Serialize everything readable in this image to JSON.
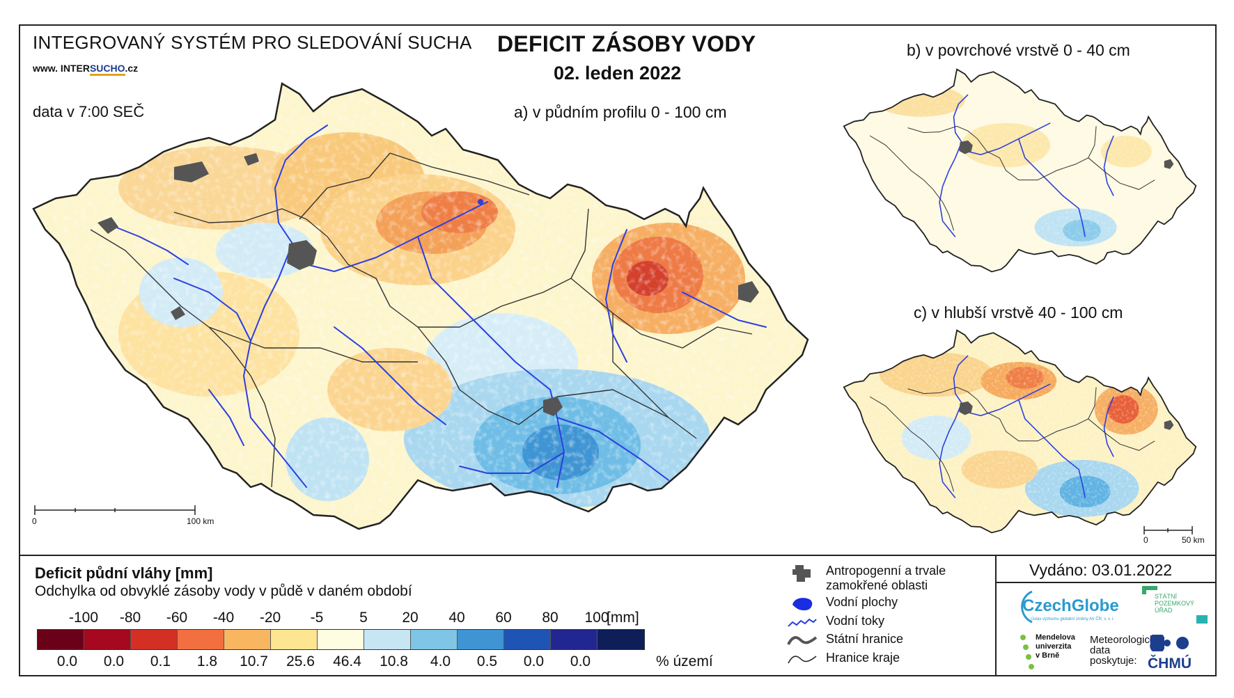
{
  "header": {
    "system_title": "INTEGROVANÝ SYSTÉM PRO SLEDOVÁNÍ SUCHA",
    "website_prefix": "www. INTER",
    "website_brand": "SUCHO",
    "website_suffix": ".cz",
    "data_time": "data v 7:00 SEČ",
    "main_title": "DEFICIT ZÁSOBY VODY",
    "date": "02. leden 2022"
  },
  "maps": {
    "a_caption": "a) v půdním profilu 0 - 100 cm",
    "b_caption": "b) v povrchové vrstvě 0 - 40 cm",
    "c_caption": "c) v hlubší vrstvě 40 - 100 cm",
    "scale_main_start": "0",
    "scale_main_end": "100 km",
    "scale_small_start": "0",
    "scale_small_end": "50 km"
  },
  "legend": {
    "title": "Deficit půdní vláhy  [mm]",
    "subtitle": "Odchylka od obvyklé zásoby vody v půdě v daném období",
    "ticks": [
      "-100",
      "-80",
      "-60",
      "-40",
      "-20",
      "-5",
      "5",
      "20",
      "40",
      "60",
      "80",
      "100"
    ],
    "tick_unit": "[mm]",
    "colors": [
      "#6b0019",
      "#a5081f",
      "#d42f25",
      "#f2703f",
      "#f9b661",
      "#fde592",
      "#fefde2",
      "#c7e6f4",
      "#7fc5e6",
      "#3f95d4",
      "#1e55b4",
      "#222690",
      "#0d1e58"
    ],
    "percentages": [
      "0.0",
      "0.0",
      "0.1",
      "1.8",
      "10.7",
      "25.6",
      "46.4",
      "10.8",
      "4.0",
      "0.5",
      "0.0",
      "0.0"
    ],
    "percent_unit": "% území"
  },
  "symbols": [
    {
      "label_line1": "Antropogenní a trvale",
      "label_line2": "zamokřené oblasti",
      "icon": "urban-area-icon"
    },
    {
      "label_line1": "Vodní plochy",
      "label_line2": "",
      "icon": "water-body-icon"
    },
    {
      "label_line1": "Vodní toky",
      "label_line2": "",
      "icon": "river-icon"
    },
    {
      "label_line1": "Státní hranice",
      "label_line2": "",
      "icon": "state-border-icon"
    },
    {
      "label_line1": "Hranice kraje",
      "label_line2": "",
      "icon": "region-border-icon"
    }
  ],
  "issuer": {
    "issued": "Vydáno: 03.01.2022",
    "czechglobe": "CzechGlobe",
    "czechglobe_sub": "Ústav výzkumu globální změny AV ČR, v. v. i.",
    "spu_line1": "STÁTNÍ",
    "spu_line2": "POZEMKOVÝ",
    "spu_line3": "ÚŘAD",
    "mendel_line1": "Mendelova",
    "mendel_line2": "univerzita",
    "mendel_line3": "v Brně",
    "meteo_line1": "Meteorologická",
    "meteo_line2": "data",
    "meteo_line3": "poskytuje:",
    "chmu": "ČHMÚ"
  },
  "accent_colors": {
    "river": "#2b3fe0",
    "border": "#222222",
    "urban": "#555555",
    "czechglobe": "#2a9ad0",
    "chmu": "#1d3e8c"
  }
}
